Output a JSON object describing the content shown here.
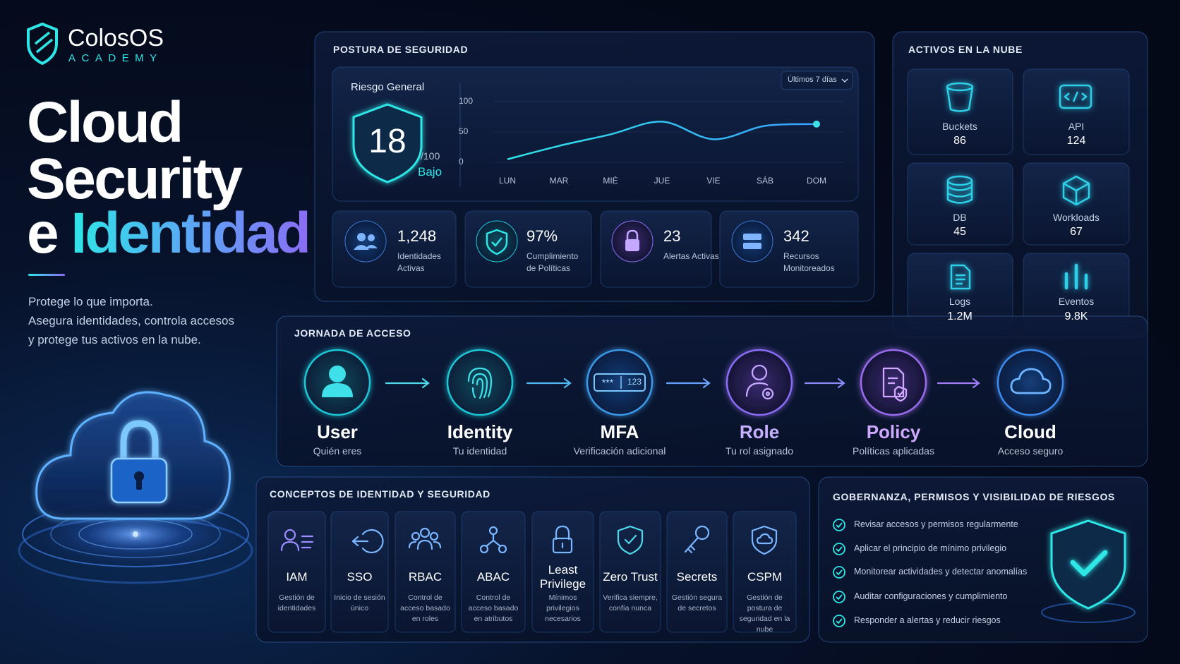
{
  "brand": {
    "name": "ColosOS",
    "sub": "ACADEMY"
  },
  "hero": {
    "title_lines": [
      "Cloud",
      "Security"
    ],
    "title_connector": "e",
    "title_highlight": "Identidad",
    "description": [
      "Protege lo que importa.",
      "Asegura identidades, controla accesos",
      "y protege tus activos en la nube."
    ]
  },
  "posture": {
    "title": "POSTURA DE SEGURIDAD",
    "risk_label": "Riesgo General",
    "score": 18,
    "score_max": "/100",
    "level": "Bajo",
    "range": "Últimos 7 días",
    "chart": {
      "type": "line",
      "categories": [
        "LUN",
        "MAR",
        "MIÉ",
        "JUE",
        "VIE",
        "SÁB",
        "DOM"
      ],
      "values": [
        5,
        27,
        46,
        67,
        38,
        60,
        63
      ],
      "ylim": [
        0,
        100
      ],
      "yticks": [
        0,
        50,
        100
      ]
    },
    "stats": [
      {
        "value": "1,248",
        "label": "Identidades Activas"
      },
      {
        "value": "97%",
        "label": "Cumplimiento de Políticas"
      },
      {
        "value": 23,
        "label": "Alertas Activas"
      },
      {
        "value": 342,
        "label": "Recursos Monitoreados"
      }
    ]
  },
  "assets": {
    "title": "ACTIVOS EN LA NUBE",
    "items": [
      {
        "name": "Buckets",
        "value": 86
      },
      {
        "name": "API",
        "value": 124
      },
      {
        "name": "DB",
        "value": 45
      },
      {
        "name": "Workloads",
        "value": 67
      },
      {
        "name": "Logs",
        "value": "1.2M"
      },
      {
        "name": "Eventos",
        "value": "9.8K"
      }
    ]
  },
  "journey": {
    "title": "JORNADA DE ACCESO",
    "steps": [
      {
        "name": "User",
        "desc": "Quién eres"
      },
      {
        "name": "Identity",
        "desc": "Tu identidad"
      },
      {
        "name": "MFA",
        "desc": "Verificación adicional"
      },
      {
        "name": "Role",
        "desc": "Tu rol asignado"
      },
      {
        "name": "Policy",
        "desc": "Políticas aplicadas"
      },
      {
        "name": "Cloud",
        "desc": "Acceso seguro"
      }
    ],
    "mfa_code": "123"
  },
  "concepts": {
    "title": "CONCEPTOS DE IDENTIDAD Y SEGURIDAD",
    "items": [
      {
        "name": "IAM",
        "desc": "Gestión de identidades"
      },
      {
        "name": "SSO",
        "desc": "Inicio de sesión único"
      },
      {
        "name": "RBAC",
        "desc": "Control de acceso basado en roles"
      },
      {
        "name": "ABAC",
        "desc": "Control de acceso basado en atributos"
      },
      {
        "name": "Least Privilege",
        "desc": "Mínimos privilegios necesarios"
      },
      {
        "name": "Zero Trust",
        "desc": "Verifica siempre, confía nunca"
      },
      {
        "name": "Secrets",
        "desc": "Gestión segura de secretos"
      },
      {
        "name": "CSPM",
        "desc": "Gestión de postura de seguridad en la nube"
      }
    ]
  },
  "governance": {
    "title": "GOBERNANZA, PERMISOS Y VISIBILIDAD DE RIESGOS",
    "items": [
      "Revisar accesos y permisos regularmente",
      "Aplicar el principio de mínimo privilegio",
      "Monitorear actividades y detectar anomalías",
      "Auditar configuraciones y cumplimiento",
      "Responder a alertas y reducir riesgos"
    ]
  }
}
